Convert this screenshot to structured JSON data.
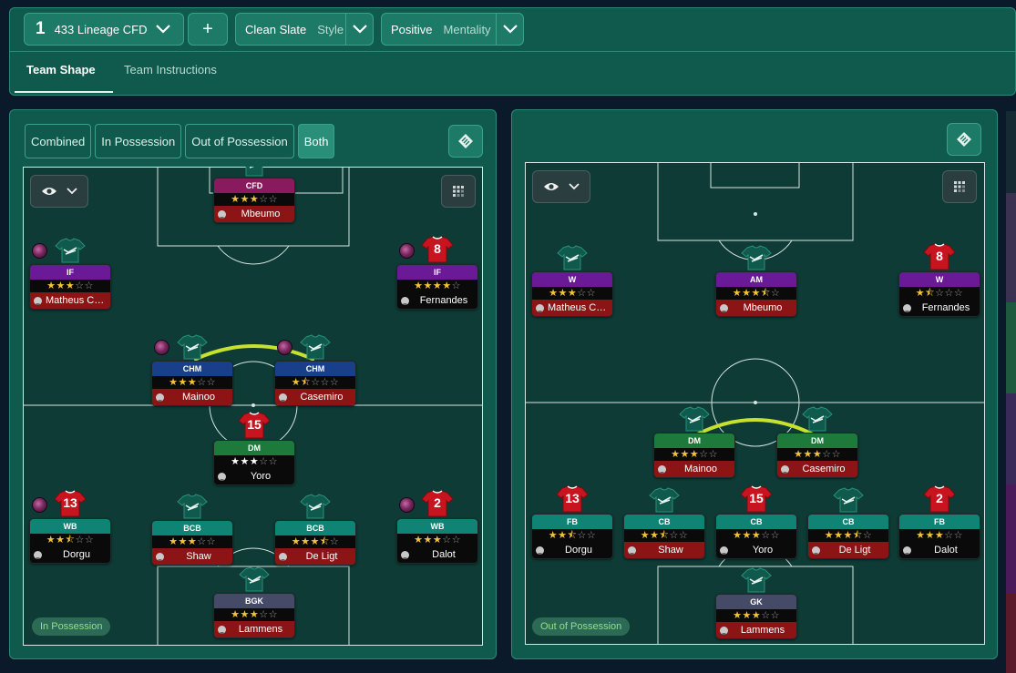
{
  "header": {
    "formation_number": "1",
    "formation_name": "433 Lineage CFD",
    "add_label": "+",
    "style_value": "Clean Slate",
    "style_label": "Style",
    "mentality_value": "Positive",
    "mentality_label": "Mentality"
  },
  "tabs": [
    {
      "label": "Team Shape",
      "active": true
    },
    {
      "label": "Team Instructions",
      "active": false
    }
  ],
  "phase_filter": {
    "options": [
      "Combined",
      "In Possession",
      "Out of Possession",
      "Both"
    ],
    "selected": "Both"
  },
  "colors": {
    "panel": "#0f5a4d",
    "pitch": "#0e3b35",
    "link_line": "#c6e22e",
    "star": "#f2c23a"
  },
  "left_pitch": {
    "badge": "In Possession",
    "players": [
      {
        "role": "CFD",
        "stars": 3,
        "half": false,
        "name": "Mbeumo",
        "role_color": "pink",
        "name_color": "red",
        "kit": "green",
        "number": "",
        "orb": false
      },
      {
        "role": "IF",
        "stars": 3,
        "half": false,
        "name": "Matheus Cu...",
        "role_color": "purple",
        "name_color": "red",
        "kit": "green",
        "number": "",
        "orb": true
      },
      {
        "role": "IF",
        "stars": 4,
        "half": false,
        "name": "Fernandes",
        "role_color": "purple",
        "name_color": "black",
        "kit": "red",
        "number": "8",
        "orb": true
      },
      {
        "role": "CHM",
        "stars": 3,
        "half": false,
        "name": "Mainoo",
        "role_color": "blue",
        "name_color": "red",
        "kit": "green",
        "number": "",
        "orb": true
      },
      {
        "role": "CHM",
        "stars": 1,
        "half": true,
        "name": "Casemiro",
        "role_color": "blue",
        "name_color": "red",
        "kit": "green",
        "number": "",
        "orb": true
      },
      {
        "role": "DM",
        "stars": 3,
        "half": false,
        "name": "Yoro",
        "role_color": "green",
        "name_color": "black",
        "kit": "red",
        "number": "15",
        "orb": false,
        "white_stars": true
      },
      {
        "role": "WB",
        "stars": 2,
        "half": true,
        "name": "Dorgu",
        "role_color": "teal",
        "name_color": "black",
        "kit": "red",
        "number": "13",
        "orb": true
      },
      {
        "role": "BCB",
        "stars": 3,
        "half": false,
        "name": "Shaw",
        "role_color": "teal",
        "name_color": "red",
        "kit": "green",
        "number": "",
        "orb": false
      },
      {
        "role": "BCB",
        "stars": 3,
        "half": true,
        "name": "De Ligt",
        "role_color": "teal",
        "name_color": "red",
        "kit": "green",
        "number": "",
        "orb": false
      },
      {
        "role": "WB",
        "stars": 3,
        "half": false,
        "name": "Dalot",
        "role_color": "teal",
        "name_color": "black",
        "kit": "red",
        "number": "2",
        "orb": true
      },
      {
        "role": "BGK",
        "stars": 3,
        "half": false,
        "name": "Lammens",
        "role_color": "slate",
        "name_color": "red",
        "kit": "green",
        "number": "",
        "orb": false
      }
    ]
  },
  "right_pitch": {
    "badge": "Out of Possession",
    "players": [
      {
        "role": "W",
        "stars": 3,
        "half": false,
        "name": "Matheus Cu...",
        "role_color": "purple",
        "name_color": "red",
        "kit": "green",
        "number": ""
      },
      {
        "role": "AM",
        "stars": 3,
        "half": true,
        "name": "Mbeumo",
        "role_color": "purple",
        "name_color": "red",
        "kit": "green",
        "number": ""
      },
      {
        "role": "W",
        "stars": 1,
        "half": true,
        "name": "Fernandes",
        "role_color": "purple",
        "name_color": "black",
        "kit": "red",
        "number": "8"
      },
      {
        "role": "DM",
        "stars": 3,
        "half": false,
        "name": "Mainoo",
        "role_color": "green",
        "name_color": "red",
        "kit": "green",
        "number": ""
      },
      {
        "role": "DM",
        "stars": 3,
        "half": false,
        "name": "Casemiro",
        "role_color": "green",
        "name_color": "red",
        "kit": "green",
        "number": ""
      },
      {
        "role": "FB",
        "stars": 2,
        "half": true,
        "name": "Dorgu",
        "role_color": "teal",
        "name_color": "black",
        "kit": "red",
        "number": "13"
      },
      {
        "role": "CB",
        "stars": 2,
        "half": true,
        "name": "Shaw",
        "role_color": "teal",
        "name_color": "red",
        "kit": "green",
        "number": ""
      },
      {
        "role": "CB",
        "stars": 3,
        "half": false,
        "name": "Yoro",
        "role_color": "teal",
        "name_color": "black",
        "kit": "red",
        "number": "15"
      },
      {
        "role": "CB",
        "stars": 3,
        "half": true,
        "name": "De Ligt",
        "role_color": "teal",
        "name_color": "red",
        "kit": "green",
        "number": ""
      },
      {
        "role": "FB",
        "stars": 3,
        "half": false,
        "name": "Dalot",
        "role_color": "teal",
        "name_color": "black",
        "kit": "red",
        "number": "2"
      },
      {
        "role": "GK",
        "stars": 3,
        "half": false,
        "name": "Lammens",
        "role_color": "slate",
        "name_color": "red",
        "kit": "green",
        "number": ""
      }
    ]
  },
  "icons": {
    "formation_chevron": "chevron-down-icon",
    "tactics_board": "tactics-board-icon",
    "visibility": "eye-icon",
    "grid": "grid-icon",
    "kit": "shirt-icon",
    "role_orb": "role-orb-icon"
  }
}
